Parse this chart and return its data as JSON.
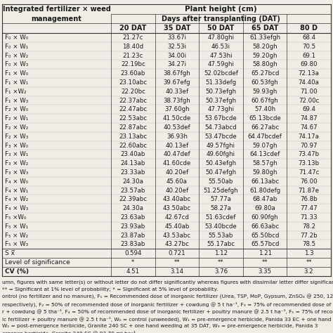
{
  "title_main": "Plant height (cm)",
  "title_sub": "Days after transplanting (DAT)",
  "col_headers": [
    "20 DAT",
    "35 DAT",
    "50 DAT",
    "65 DAT",
    "80 D"
  ],
  "row_labels": [
    "F₀ × W₀",
    "F₀ × W₁",
    "F₀ × W₂",
    "F₀ × W₃",
    "F₁ × W₀",
    "F₁ × W₁",
    "F₁ ×W₂",
    "F₁ × W₃",
    "F₂ × W₀",
    "F₂ × W₁",
    "F₂ × W₂",
    "F₂ × W₃",
    "F₃ × W₀",
    "F₃ × W₁",
    "F₃ × W₂",
    "F₃ × W₃",
    "F₄ × W₀",
    "F₄ × W₁",
    "F₄ × W₂",
    "F₄ × W₃",
    "F₅ ×W₀",
    "F₅ × W₁",
    "F₅ × W₂",
    "F₅ × W₃"
  ],
  "data": [
    [
      "21.27c",
      "33.67i",
      "47.80ghi",
      "61.33efgh",
      "68.4"
    ],
    [
      "18.40d",
      "32.53i",
      "46.53i",
      "58.20gh",
      "70.5"
    ],
    [
      "21.23c",
      "34.00i",
      "47.53hi",
      "59.20gh",
      "69.1"
    ],
    [
      "22.19bc",
      "34.27i",
      "47.59ghi",
      "58.80gh",
      "69.80"
    ],
    [
      "23.60ab",
      "38.67fgh",
      "52.02bcdef",
      "65.27bcd",
      "72.13a"
    ],
    [
      "23.10abc",
      "39.67efg",
      "51.33defg",
      "60.53fgh",
      "74.40a"
    ],
    [
      "22.20bc",
      "40.33ef",
      "50.73efgh",
      "59.93gh",
      "71.00"
    ],
    [
      "22.37abc",
      "38.73fgh",
      "50.37efgh",
      "60.67fgh",
      "72.00c"
    ],
    [
      "22.47abc",
      "37.60gh",
      "47.73ghi",
      "57.40h",
      "69.4"
    ],
    [
      "22.53abc",
      "41.50cde",
      "53.67bcde",
      "65.13bcde",
      "74.87"
    ],
    [
      "22.87abc",
      "40.53def",
      "54.73abcd",
      "66.27abc",
      "74.67"
    ],
    [
      "23.13abc",
      "36.93h",
      "53.47bcde",
      "64.47bcdef",
      "74.17a"
    ],
    [
      "22.60abc",
      "40.13ef",
      "49.57fghi",
      "59.07gh",
      "70.97"
    ],
    [
      "23.40ab",
      "40.47def",
      "49.60fghi",
      "64.13cdef",
      "73.47b"
    ],
    [
      "24.13ab",
      "41.60cde",
      "50.43efgh",
      "58.57gh",
      "73.13b"
    ],
    [
      "23.33ab",
      "40.20ef",
      "50.47efgh",
      "59.80gh",
      "71.47c"
    ],
    [
      "24.30a",
      "45.60a",
      "55.50ab",
      "66.13abc",
      "76.00"
    ],
    [
      "23.57ab",
      "40.20ef",
      "51.25defgh",
      "61.80defg",
      "71.87e"
    ],
    [
      "22.39abc",
      "43.40abc",
      "57.77a",
      "68.47ab",
      "76.8b"
    ],
    [
      "24.30a",
      "43.50abc",
      "58.27a",
      "69.80a",
      "77.47"
    ],
    [
      "23.63ab",
      "42.67cd",
      "51.63cdef",
      "60.90fgh",
      "71.33"
    ],
    [
      "23.93ab",
      "45.40ab",
      "53.40bcde",
      "66.63abc",
      "78.2"
    ],
    [
      "23.87ab",
      "43.53abc",
      "55.53ab",
      "65.50bcd",
      "77.2b"
    ],
    [
      "23.83ab",
      "43.27bc",
      "55.17abc",
      "65.57bcd",
      "78.5"
    ]
  ],
  "sx_row": [
    "0.594",
    "0.721",
    "1.12",
    "1.21",
    "1.3"
  ],
  "los_row": [
    "*",
    "**",
    "**",
    "**",
    "**"
  ],
  "cv_row": [
    "4.51",
    "3.14",
    "3.76",
    "3.35",
    "3.2"
  ],
  "footer_lines": [
    "umn, figures with same letter(s) or without letter do not differ significantly whereas figures with dissimilar letter differ significanth",
    "** = Significant at 1% level of probability; * = Significant at 5% level of probability.",
    "ontrol (no fertilizer and no manure), F₁ = Recommended dose of inorganic fertilizer (Urea, TSP, MoP, Gypsum, ZnSO₄ @ 250, 120, 120,",
    "respectively), F₂ = 50% of recommended dose of inorganic fertilizer + cowdung @ 5 t ha⁻¹, F₃ = 75% of recommended dose of i",
    "r + cowdung @ 5 tha⁻¹, F₄ = 50% of recommended dose of inorganic fertilizer + poultry manure @ 2.5 t ha⁻¹, F₅ = 75% of recommendec",
    "ic fertilizer + poultry manure @ 2.5 t ha⁻¹, W₀ = control (unweeded), W₁ = pre-emergence herbicide, Panida 33 EC + one hand weedi",
    "W₂ = post-emergence herbicide, Granite 240 SC + one hand weeding at 35 DAT, W₃ = pre-emergence herbicide, Panida 3",
    "ergence herbicide, Granite 240 SC @ 93.70 ml ha⁻¹."
  ],
  "bg_color": "#f0ede6",
  "text_color": "#1a1a1a",
  "line_color": "#333333",
  "header_fontsize": 7.0,
  "data_fontsize": 6.2,
  "footer_fontsize": 5.3
}
